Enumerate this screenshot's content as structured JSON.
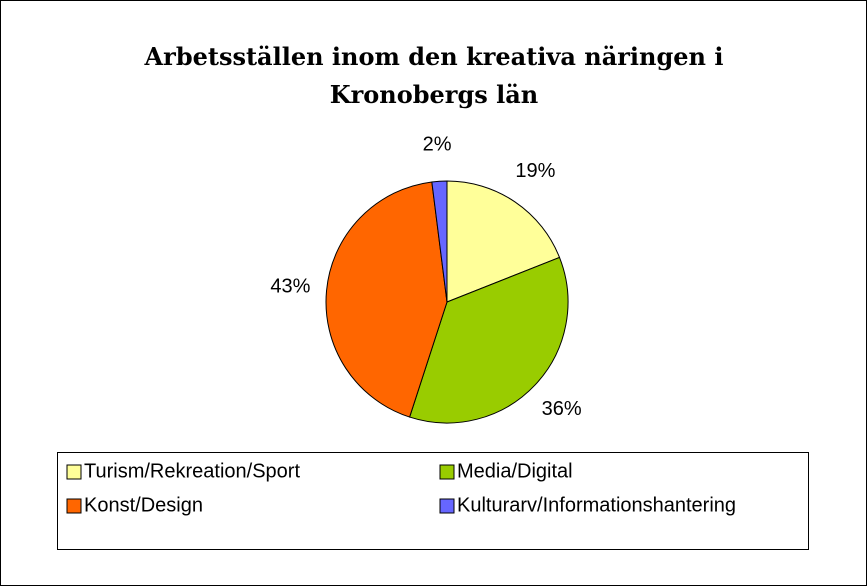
{
  "chart_data": {
    "type": "pie",
    "title": "Arbetsställen inom den kreativa näringen i Kronobergs län",
    "categories": [
      "Turism/Rekreation/Sport",
      "Media/Digital",
      "Konst/Design",
      "Kulturarv/Informationshantering"
    ],
    "values": [
      19,
      36,
      43,
      2
    ],
    "value_labels": [
      "19%",
      "36%",
      "43%",
      "2%"
    ],
    "colors": [
      "#FFFF99",
      "#99CC00",
      "#FF6600",
      "#6666FF"
    ],
    "legend": "bottom"
  }
}
